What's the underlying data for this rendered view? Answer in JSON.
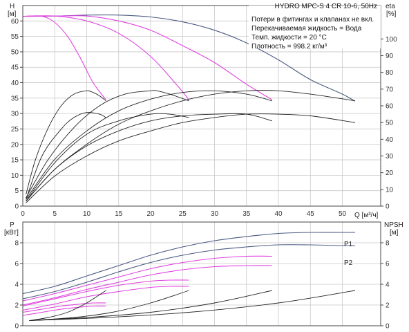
{
  "chart_data": [
    {
      "type": "line",
      "title": "HYDRO MPC-S 4 CR 10-6, 50Hz",
      "annotations": [
        "Потери в фитингах и клапанах не вкл.",
        "Перекачиваемая жидкость = Вода",
        "Темп. жидкости = 20 °C",
        "Плотность = 998.2 кг/м³"
      ],
      "ylabel_left": "H",
      "ylabel_left_unit": "[м]",
      "ylabel_right": "eta",
      "ylabel_right_unit": "[%]",
      "xlabel": "Q [м³/ч]",
      "xlim": [
        0,
        56
      ],
      "ylim_left": [
        0,
        65
      ],
      "ylim_right": [
        0,
        120
      ],
      "x_ticks": [
        0,
        5,
        10,
        15,
        20,
        25,
        30,
        35,
        40,
        45,
        50
      ],
      "x_tick_labels": [
        "0",
        "5",
        "10",
        "15",
        "20",
        "25",
        "30",
        "35",
        "40",
        "45",
        "50"
      ],
      "y_left_ticks": [
        0,
        5,
        10,
        15,
        20,
        25,
        30,
        35,
        40,
        45,
        50,
        55,
        60
      ],
      "y_left_tick_labels": [
        "0",
        "5",
        "10",
        "15",
        "20",
        "25",
        "30",
        "35",
        "40",
        "45",
        "50",
        "55",
        "60"
      ],
      "y_right_ticks": [
        0,
        10,
        20,
        30,
        40,
        50,
        60,
        70,
        80,
        90,
        100
      ],
      "y_right_tick_labels": [
        "0",
        "10",
        "20",
        "30",
        "40",
        "50",
        "60",
        "70",
        "80",
        "90",
        "100"
      ],
      "grid": true,
      "series": [
        {
          "kind": "head",
          "color": "#4a5a82",
          "x": [
            0,
            5,
            10,
            15,
            20,
            25,
            30,
            35,
            40,
            45,
            50,
            52
          ],
          "y": [
            61.5,
            61.6,
            61.9,
            61.9,
            61.3,
            59.7,
            57.0,
            52.9,
            47.4,
            41.0,
            36.3,
            34.0
          ]
        },
        {
          "kind": "head",
          "color": "#e040e0",
          "x": [
            0,
            3,
            5,
            7,
            9,
            11,
            13
          ],
          "y": [
            61.5,
            61.5,
            59.5,
            55.0,
            48.0,
            40.0,
            34.5
          ]
        },
        {
          "kind": "head",
          "color": "#e040e0",
          "x": [
            0,
            5,
            10,
            15,
            20,
            24,
            26
          ],
          "y": [
            61.5,
            61.6,
            60.0,
            56.0,
            48.5,
            39.5,
            34.5
          ]
        },
        {
          "kind": "head",
          "color": "#e040e0",
          "x": [
            0,
            5,
            10,
            15,
            20,
            25,
            30,
            35,
            39
          ],
          "y": [
            61.5,
            61.6,
            61.6,
            60.0,
            57.0,
            52.0,
            46.5,
            39.5,
            34.5
          ]
        },
        {
          "kind": "eta",
          "color": "#222222",
          "x": [
            0.5,
            2,
            4,
            6,
            8,
            10,
            11,
            12,
            13
          ],
          "y": [
            7,
            28,
            47,
            60,
            67,
            69,
            68,
            66,
            63
          ]
        },
        {
          "kind": "eta",
          "color": "#222222",
          "x": [
            0.5,
            4,
            8,
            12,
            16,
            20,
            21,
            23,
            26
          ],
          "y": [
            5,
            28,
            47,
            60,
            67,
            69,
            69,
            67,
            63
          ]
        },
        {
          "kind": "eta",
          "color": "#222222",
          "x": [
            0.5,
            5,
            10,
            15,
            20,
            25,
            30,
            35,
            39
          ],
          "y": [
            4,
            28,
            45,
            57,
            64,
            68,
            69,
            67,
            63
          ]
        },
        {
          "kind": "eta",
          "color": "#222222",
          "x": [
            0.5,
            5,
            10,
            15,
            20,
            25,
            30,
            35,
            40,
            45,
            52
          ],
          "y": [
            3,
            22,
            37,
            49,
            57,
            63,
            67,
            69,
            69,
            67,
            63
          ]
        },
        {
          "kind": "eta",
          "color": "#222222",
          "x": [
            0.5,
            3,
            6,
            8,
            10,
            12,
            13
          ],
          "y": [
            4,
            30,
            46,
            53,
            56,
            55,
            53
          ]
        },
        {
          "kind": "eta",
          "color": "#222222",
          "x": [
            0.5,
            5,
            10,
            15,
            20,
            23,
            26
          ],
          "y": [
            3,
            26,
            43,
            51,
            55,
            55,
            53
          ]
        },
        {
          "kind": "eta",
          "color": "#222222",
          "x": [
            0.5,
            5,
            10,
            15,
            20,
            25,
            30,
            35,
            39
          ],
          "y": [
            3,
            22,
            36,
            45,
            51,
            54,
            55,
            55,
            51
          ]
        },
        {
          "kind": "eta",
          "color": "#222222",
          "x": [
            0.5,
            5,
            10,
            15,
            20,
            25,
            30,
            35,
            40,
            45,
            52
          ],
          "y": [
            2,
            18,
            30,
            39,
            45,
            50,
            53,
            55,
            55,
            54,
            50
          ]
        }
      ]
    },
    {
      "type": "line",
      "ylabel_left": "P",
      "ylabel_left_unit": "[кВт]",
      "ylabel_right": "NPSH",
      "ylabel_right_unit": "[м]",
      "xlim": [
        0,
        56
      ],
      "ylim_left": [
        0,
        10
      ],
      "ylim_right": [
        0,
        10
      ],
      "y_left_ticks": [
        0,
        2,
        4,
        6,
        8
      ],
      "y_left_tick_labels": [
        "0",
        "2",
        "4",
        "6",
        "8"
      ],
      "y_right_ticks": [
        0,
        2,
        4,
        6,
        8
      ],
      "y_right_tick_labels": [
        "0",
        "2",
        "4",
        "6",
        "8"
      ],
      "grid": true,
      "series_labels": [
        "P1",
        "P2"
      ],
      "series": [
        {
          "kind": "P1",
          "name": "P1",
          "color": "#4a5a82",
          "x": [
            0,
            5,
            10,
            15,
            20,
            25,
            30,
            35,
            40,
            45,
            52
          ],
          "y": [
            3.1,
            3.8,
            4.8,
            5.8,
            6.8,
            7.6,
            8.2,
            8.6,
            8.9,
            9.0,
            9.0
          ]
        },
        {
          "kind": "P2",
          "name": "P2",
          "color": "#4a5a82",
          "x": [
            0,
            5,
            10,
            15,
            20,
            25,
            30,
            35,
            40,
            45,
            52
          ],
          "y": [
            2.6,
            3.3,
            4.2,
            5.2,
            6.1,
            6.8,
            7.3,
            7.6,
            7.8,
            7.8,
            7.7
          ]
        },
        {
          "kind": "P",
          "color": "#e040e0",
          "x": [
            0,
            5,
            10,
            15,
            20,
            25,
            30,
            35,
            39
          ],
          "y": [
            2.4,
            3.1,
            3.9,
            4.7,
            5.5,
            6.1,
            6.5,
            6.7,
            6.7
          ]
        },
        {
          "kind": "P",
          "color": "#e040e0",
          "x": [
            0,
            5,
            10,
            15,
            20,
            25,
            30,
            35,
            39
          ],
          "y": [
            2.0,
            2.7,
            3.5,
            4.2,
            4.9,
            5.4,
            5.7,
            5.8,
            5.8
          ]
        },
        {
          "kind": "P",
          "color": "#e040e0",
          "x": [
            0,
            5,
            10,
            15,
            20,
            23,
            26
          ],
          "y": [
            1.9,
            2.6,
            3.3,
            3.9,
            4.3,
            4.4,
            4.4
          ]
        },
        {
          "kind": "P",
          "color": "#e040e0",
          "x": [
            0,
            5,
            10,
            15,
            20,
            23,
            26
          ],
          "y": [
            1.5,
            2.1,
            2.8,
            3.3,
            3.7,
            3.8,
            3.8
          ]
        },
        {
          "kind": "P",
          "color": "#e040e0",
          "x": [
            0,
            3,
            6,
            9,
            11,
            13
          ],
          "y": [
            1.3,
            1.6,
            1.9,
            2.1,
            2.2,
            2.2
          ]
        },
        {
          "kind": "P",
          "color": "#e040e0",
          "x": [
            0,
            3,
            6,
            9,
            11,
            13
          ],
          "y": [
            1.0,
            1.3,
            1.6,
            1.8,
            1.9,
            1.9
          ]
        },
        {
          "kind": "NPSH",
          "color": "#222222",
          "x": [
            1,
            4,
            7,
            10,
            13
          ],
          "y": [
            0.5,
            0.8,
            1.3,
            2.2,
            3.4
          ]
        },
        {
          "kind": "NPSH",
          "color": "#222222",
          "x": [
            1,
            8,
            14,
            20,
            26
          ],
          "y": [
            0.5,
            0.8,
            1.3,
            2.2,
            3.4
          ]
        },
        {
          "kind": "NPSH",
          "color": "#222222",
          "x": [
            1,
            10,
            20,
            30,
            39
          ],
          "y": [
            0.5,
            0.8,
            1.3,
            2.2,
            3.4
          ]
        },
        {
          "kind": "NPSH",
          "color": "#222222",
          "x": [
            1,
            13,
            26,
            40,
            52
          ],
          "y": [
            0.5,
            0.8,
            1.3,
            2.2,
            3.4
          ]
        }
      ]
    }
  ]
}
